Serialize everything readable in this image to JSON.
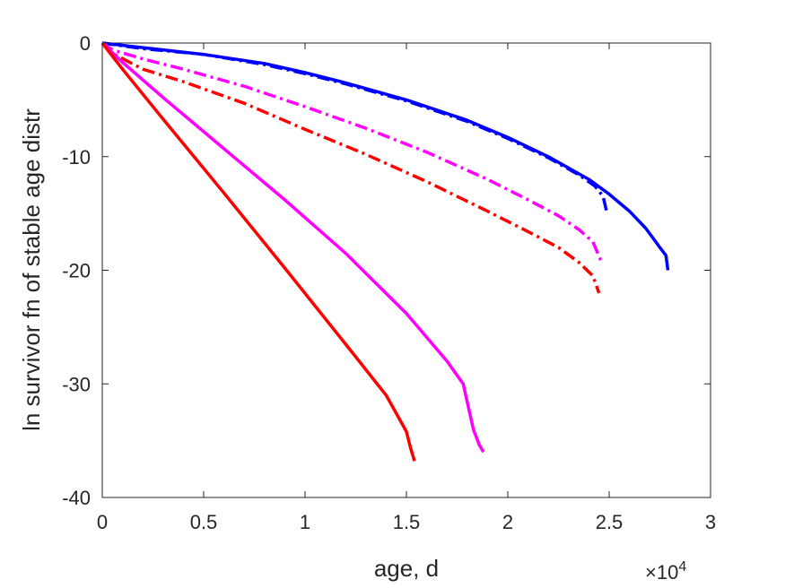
{
  "chart_data": {
    "type": "line",
    "title": "",
    "xlabel": "age, d",
    "ylabel": "ln survivor fn of stable age distr",
    "xlim": [
      0,
      30000
    ],
    "ylim": [
      -40,
      0
    ],
    "x_ticks": [
      0,
      5000,
      10000,
      15000,
      20000,
      25000,
      30000
    ],
    "x_tick_labels": [
      "0",
      "0.5",
      "1",
      "1.5",
      "2",
      "2.5",
      "3"
    ],
    "x_exponent_label": "×10",
    "x_exponent": "4",
    "y_ticks": [
      0,
      -10,
      -20,
      -30,
      -40
    ],
    "y_tick_labels": [
      "0",
      "-10",
      "-20",
      "-30",
      "-40"
    ],
    "grid": false,
    "legend": "none",
    "series": [
      {
        "color": "#0000ff",
        "style": "solid",
        "points": [
          [
            0,
            0
          ],
          [
            2000,
            -0.4
          ],
          [
            5000,
            -1
          ],
          [
            8000,
            -1.8
          ],
          [
            10000,
            -2.6
          ],
          [
            12000,
            -3.5
          ],
          [
            15000,
            -5
          ],
          [
            18000,
            -6.8
          ],
          [
            20000,
            -8.3
          ],
          [
            22000,
            -10
          ],
          [
            24000,
            -12
          ],
          [
            25000,
            -13.3
          ],
          [
            26000,
            -14.8
          ],
          [
            26800,
            -16.3
          ],
          [
            27300,
            -17.5
          ],
          [
            27500,
            -18
          ],
          [
            27800,
            -18.7
          ],
          [
            27900,
            -20
          ]
        ]
      },
      {
        "color": "#0000ff",
        "style": "dashdot",
        "points": [
          [
            0,
            0
          ],
          [
            2000,
            -0.5
          ],
          [
            5000,
            -1
          ],
          [
            8000,
            -1.9
          ],
          [
            10000,
            -2.7
          ],
          [
            12000,
            -3.6
          ],
          [
            15000,
            -5.1
          ],
          [
            18000,
            -6.9
          ],
          [
            20000,
            -8.4
          ],
          [
            22000,
            -10.1
          ],
          [
            23500,
            -11.6
          ],
          [
            24300,
            -12.6
          ],
          [
            24700,
            -13.5
          ],
          [
            24900,
            -15
          ]
        ]
      },
      {
        "color": "#ff00ff",
        "style": "dashdot",
        "points": [
          [
            0,
            0
          ],
          [
            500,
            -0.6
          ],
          [
            2000,
            -1.4
          ],
          [
            4000,
            -2.3
          ],
          [
            7000,
            -3.8
          ],
          [
            10000,
            -5.6
          ],
          [
            13000,
            -7.5
          ],
          [
            16000,
            -9.6
          ],
          [
            19000,
            -12
          ],
          [
            21000,
            -13.8
          ],
          [
            22500,
            -15.2
          ],
          [
            23500,
            -16.4
          ],
          [
            24200,
            -17.5
          ],
          [
            24600,
            -19.2
          ]
        ]
      },
      {
        "color": "#ff0000",
        "style": "dashdot",
        "points": [
          [
            0,
            0
          ],
          [
            500,
            -0.9
          ],
          [
            2000,
            -2.3
          ],
          [
            4000,
            -3.4
          ],
          [
            7000,
            -5.3
          ],
          [
            10000,
            -7.6
          ],
          [
            13000,
            -9.8
          ],
          [
            16000,
            -12.2
          ],
          [
            19000,
            -14.8
          ],
          [
            21000,
            -16.6
          ],
          [
            22500,
            -18
          ],
          [
            23500,
            -19.3
          ],
          [
            24200,
            -20.5
          ],
          [
            24500,
            -22
          ]
        ]
      },
      {
        "color": "#ff00ff",
        "style": "solid",
        "points": [
          [
            0,
            0
          ],
          [
            1000,
            -1.7
          ],
          [
            3000,
            -4.8
          ],
          [
            6000,
            -9.3
          ],
          [
            9000,
            -13.8
          ],
          [
            12000,
            -18.5
          ],
          [
            15000,
            -23.8
          ],
          [
            17000,
            -28
          ],
          [
            17800,
            -30
          ],
          [
            18300,
            -34
          ],
          [
            18600,
            -35.4
          ],
          [
            18800,
            -36
          ]
        ]
      },
      {
        "color": "#ff0000",
        "style": "solid",
        "points": [
          [
            0,
            0
          ],
          [
            1000,
            -2.3
          ],
          [
            3000,
            -6.7
          ],
          [
            6000,
            -13.2
          ],
          [
            9000,
            -19.8
          ],
          [
            12000,
            -26.5
          ],
          [
            14000,
            -31
          ],
          [
            15000,
            -34.2
          ],
          [
            15200,
            -35.6
          ],
          [
            15400,
            -36.8
          ]
        ]
      }
    ]
  }
}
